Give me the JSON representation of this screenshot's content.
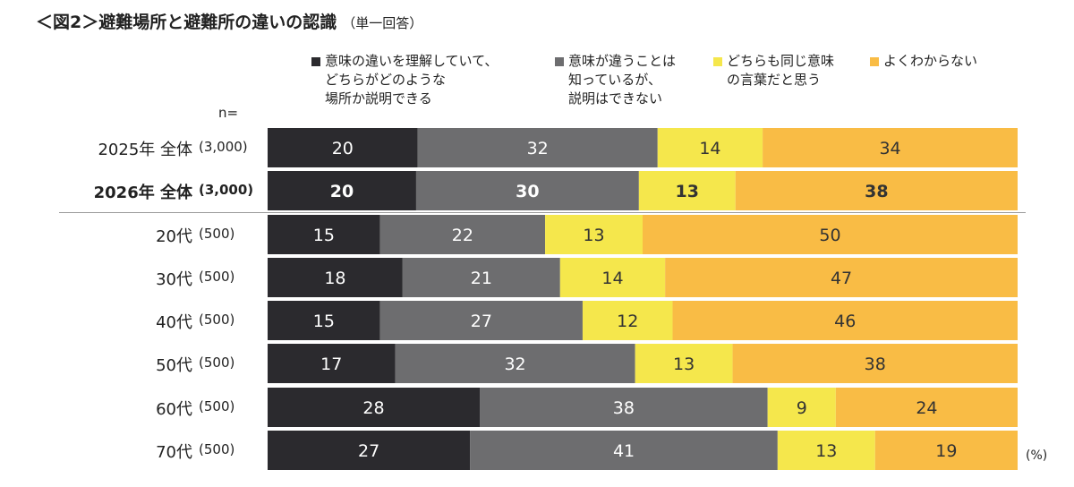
{
  "title": "＜図2＞避難場所と避難所の違いの認識",
  "subtitle": "（単一回答）",
  "n_label": "n=",
  "unit_label": "(%)",
  "colors": {
    "understand": "#2b2a2e",
    "know_diff": "#6d6d6f",
    "same_meaning": "#f5e74c",
    "dont_know": "#f9bc45"
  },
  "chart_data": {
    "type": "bar",
    "orientation": "horizontal",
    "stacked": true,
    "normalized": true,
    "xlim": [
      0,
      100
    ],
    "legend": "top",
    "series": [
      {
        "name": "意味の違いを理解していて、\nどちらがどのような\n場所か説明できる",
        "values": [
          20,
          20,
          15,
          18,
          15,
          17,
          28,
          27
        ]
      },
      {
        "name": "意味が違うことは\n知っているが、\n説明はできない",
        "values": [
          32,
          30,
          22,
          21,
          27,
          32,
          38,
          41
        ]
      },
      {
        "name": "どちらも同じ意味\nの言葉だと思う",
        "values": [
          14,
          13,
          13,
          14,
          12,
          13,
          9,
          13
        ]
      },
      {
        "name": "よくわからない",
        "values": [
          34,
          38,
          50,
          47,
          46,
          38,
          24,
          19
        ]
      }
    ],
    "rows": [
      {
        "label": "2025年 全体",
        "n": "(3,000)",
        "bold": false
      },
      {
        "label": "2026年 全体",
        "n": "(3,000)",
        "bold": true
      },
      {
        "label": "20代",
        "n": "(500)",
        "bold": false
      },
      {
        "label": "30代",
        "n": "(500)",
        "bold": false
      },
      {
        "label": "40代",
        "n": "(500)",
        "bold": false
      },
      {
        "label": "50代",
        "n": "(500)",
        "bold": false
      },
      {
        "label": "60代",
        "n": "(500)",
        "bold": false
      },
      {
        "label": "70代",
        "n": "(500)",
        "bold": false
      }
    ]
  }
}
